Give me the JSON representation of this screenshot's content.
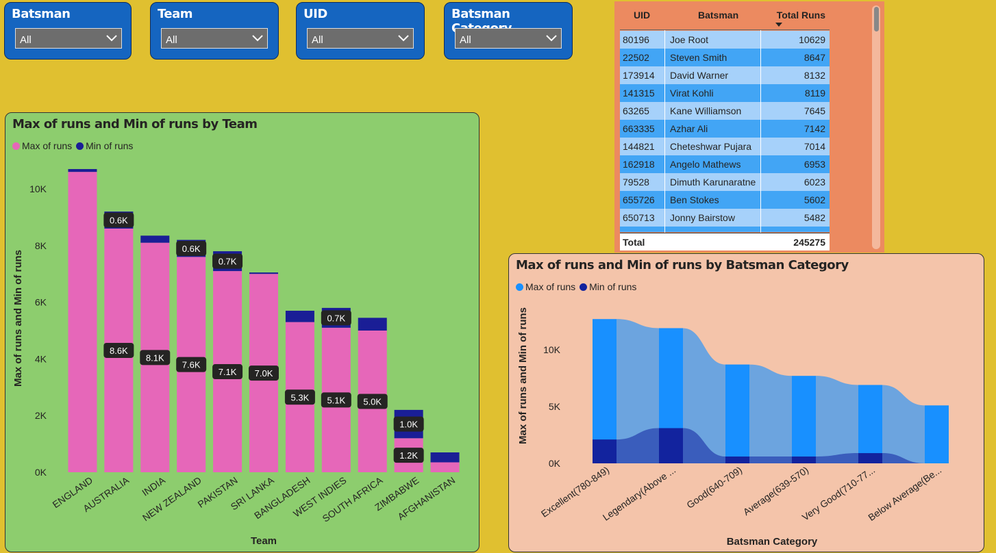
{
  "slicers": [
    {
      "title": "Batsman",
      "value": "All"
    },
    {
      "title": "Team",
      "value": "All"
    },
    {
      "title": "UID",
      "value": "All"
    },
    {
      "title": "Batsman Category",
      "value": "All"
    }
  ],
  "table": {
    "headers": {
      "uid": "UID",
      "batsman": "Batsman",
      "runs": "Total Runs"
    },
    "rows": [
      {
        "uid": "80196",
        "batsman": "Joe Root",
        "runs": "10629"
      },
      {
        "uid": "22502",
        "batsman": "Steven Smith",
        "runs": "8647"
      },
      {
        "uid": "173914",
        "batsman": "David Warner",
        "runs": "8132"
      },
      {
        "uid": "141315",
        "batsman": "Virat Kohli",
        "runs": "8119"
      },
      {
        "uid": "63265",
        "batsman": "Kane Williamson",
        "runs": "7645"
      },
      {
        "uid": "663335",
        "batsman": "Azhar Ali",
        "runs": "7142"
      },
      {
        "uid": "144821",
        "batsman": "Cheteshwar Pujara",
        "runs": "7014"
      },
      {
        "uid": "162918",
        "batsman": "Angelo Mathews",
        "runs": "6953"
      },
      {
        "uid": "79528",
        "batsman": "Dimuth Karunaratne",
        "runs": "6023"
      },
      {
        "uid": "655726",
        "batsman": "Ben Stokes",
        "runs": "5602"
      },
      {
        "uid": "650713",
        "batsman": "Jonny Bairstow",
        "runs": "5482"
      }
    ],
    "total_label": "Total",
    "total_value": "245275",
    "row_colors": [
      "#a6d1fa",
      "#42a5f5"
    ]
  },
  "chart_data": [
    {
      "type": "bar",
      "title": "Max of runs and Min of runs by Team",
      "xlabel": "Team",
      "ylabel": "Max of runs and Min of runs",
      "categories": [
        "ENGLAND",
        "AUSTRALIA",
        "INDIA",
        "NEW ZEALAND",
        "PAKISTAN",
        "SRI LANKA",
        "BANGLADESH",
        "WEST INDIES",
        "SOUTH AFRICA",
        "ZIMBABWE",
        "AFGHANISTAN"
      ],
      "series": [
        {
          "name": "Max of runs",
          "color": "#e667b9",
          "values": [
            10600,
            8600,
            8100,
            7600,
            7100,
            7000,
            5300,
            5100,
            5000,
            1200,
            350
          ],
          "labels": [
            "",
            "8.6K",
            "8.1K",
            "7.6K",
            "7.1K",
            "7.0K",
            "5.3K",
            "5.1K",
            "5.0K",
            "1.2K",
            ""
          ]
        },
        {
          "name": "Min of runs",
          "color": "#1a1e96",
          "values": [
            100,
            600,
            250,
            600,
            700,
            50,
            400,
            700,
            450,
            1000,
            350
          ],
          "labels": [
            "",
            "0.6K",
            "",
            "0.6K",
            "0.7K",
            "",
            "",
            "0.7K",
            "",
            "1.0K",
            ""
          ]
        }
      ],
      "yticks": [
        "0K",
        "2K",
        "4K",
        "6K",
        "8K",
        "10K"
      ],
      "ylim": [
        0,
        11500
      ],
      "legend": "top-left"
    },
    {
      "type": "bar",
      "title": "Max of runs and Min of runs by Batsman Category",
      "xlabel": "Batsman Category",
      "ylabel": "Max of runs and Min of runs",
      "categories": [
        "Excellent(780-849)",
        "Legendary(Above ...",
        "Good(640-709)",
        "Average(639-570)",
        "Very Good(710-77...",
        "Below Average(Be..."
      ],
      "series": [
        {
          "name": "Max of runs",
          "color": "#1890ff",
          "values": [
            12700,
            11900,
            8700,
            7700,
            6900,
            5100
          ]
        },
        {
          "name": "Min of runs",
          "color": "#12239e",
          "values": [
            2100,
            3100,
            600,
            600,
            900,
            0
          ]
        }
      ],
      "yticks": [
        "0K",
        "5K",
        "10K"
      ],
      "ylim": [
        0,
        13000
      ],
      "legend": "top-left"
    }
  ]
}
